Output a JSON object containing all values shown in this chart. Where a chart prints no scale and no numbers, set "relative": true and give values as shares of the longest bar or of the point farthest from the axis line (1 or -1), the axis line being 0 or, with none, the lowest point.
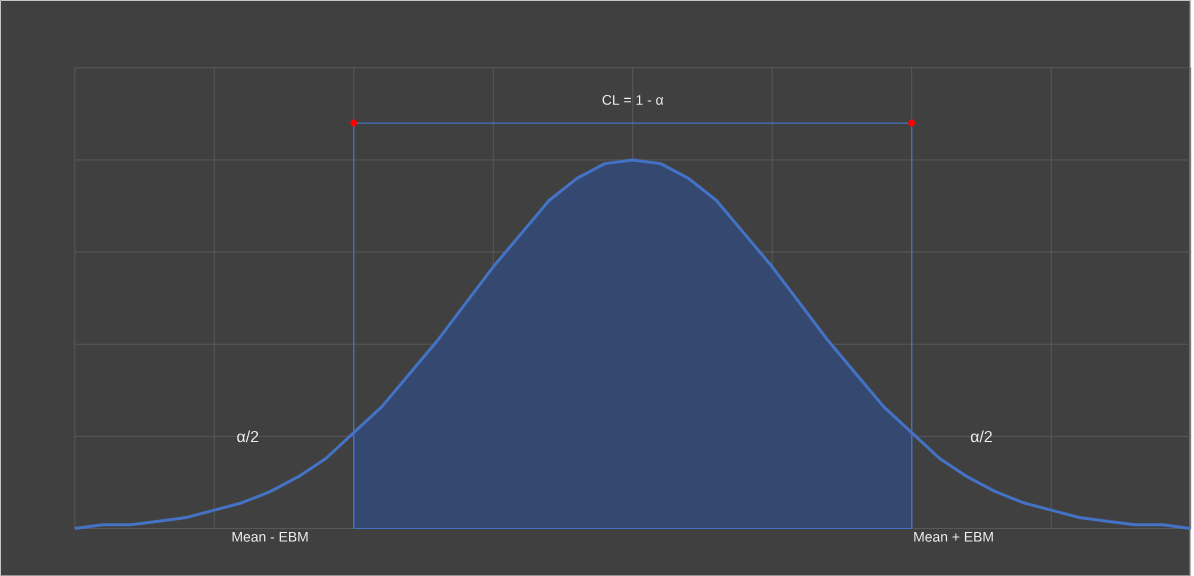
{
  "chart_data": {
    "type": "line",
    "relative": true,
    "grid": true,
    "marker": "none",
    "categories": [
      null,
      null,
      null,
      null,
      null,
      null,
      null,
      null,
      null,
      null,
      null,
      null,
      null,
      null,
      null,
      null,
      null,
      null,
      null,
      null,
      null,
      null,
      null,
      null,
      null,
      null,
      null,
      null,
      null,
      null,
      null,
      null,
      null,
      null,
      null,
      null,
      null,
      null,
      null,
      null,
      null
    ],
    "series": [
      {
        "type": "area",
        "color": "#4472c4",
        "values": [
          null,
          null,
          null,
          null,
          null,
          null,
          null,
          null,
          null,
          null,
          0.26,
          0.33,
          0.42,
          0.51,
          0.61,
          0.71,
          0.8,
          0.89,
          0.95,
          0.99,
          1,
          0.99,
          0.95,
          0.89,
          0.8,
          0.71,
          0.61,
          0.51,
          0.42,
          0.33,
          0.26,
          null,
          null,
          null,
          null,
          null,
          null,
          null,
          null,
          null,
          null
        ]
      },
      {
        "color": "#4472c4",
        "values": [
          0,
          0.01,
          0.01,
          0.02,
          0.03,
          0.05,
          0.07,
          0.1,
          0.14,
          0.19,
          0.26,
          0.33,
          0.42,
          0.51,
          0.61,
          0.71,
          0.8,
          0.89,
          0.95,
          0.99,
          1,
          0.99,
          0.95,
          0.89,
          0.8,
          0.71,
          0.61,
          0.51,
          0.42,
          0.33,
          0.26,
          0.19,
          0.14,
          0.1,
          0.07,
          0.05,
          0.03,
          0.02,
          0.01,
          0.01,
          0
        ]
      }
    ],
    "annotations": [
      "CL = 1 - α",
      "α/2",
      "α/2",
      "Mean - EBM",
      "Mean + EBM"
    ]
  }
}
